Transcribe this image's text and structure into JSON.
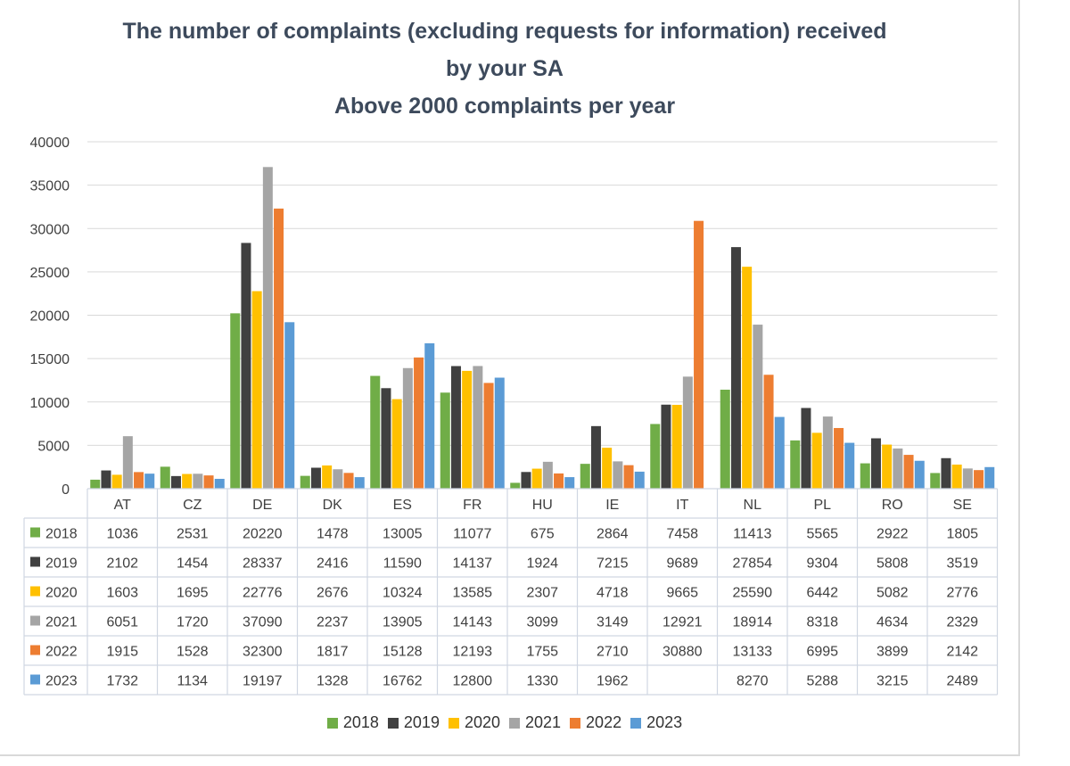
{
  "chart_data": {
    "type": "bar",
    "title": [
      "The number of complaints (excluding requests for information) received",
      "by your SA",
      "Above 2000  complaints per year"
    ],
    "categories": [
      "AT",
      "CZ",
      "DE",
      "DK",
      "ES",
      "FR",
      "HU",
      "IE",
      "IT",
      "NL",
      "PL",
      "RO",
      "SE"
    ],
    "series": [
      {
        "name": "2018",
        "color": "#70ad47",
        "values": [
          1036,
          2531,
          20220,
          1478,
          13005,
          11077,
          675,
          2864,
          7458,
          11413,
          5565,
          2922,
          1805
        ]
      },
      {
        "name": "2019",
        "color": "#404040",
        "values": [
          2102,
          1454,
          28337,
          2416,
          11590,
          14137,
          1924,
          7215,
          9689,
          27854,
          9304,
          5808,
          3519
        ]
      },
      {
        "name": "2020",
        "color": "#ffc000",
        "values": [
          1603,
          1695,
          22776,
          2676,
          10324,
          13585,
          2307,
          4718,
          9665,
          25590,
          6442,
          5082,
          2776
        ]
      },
      {
        "name": "2021",
        "color": "#a5a5a5",
        "values": [
          6051,
          1720,
          37090,
          2237,
          13905,
          14143,
          3099,
          3149,
          12921,
          18914,
          8318,
          4634,
          2329
        ]
      },
      {
        "name": "2022",
        "color": "#ed7d31",
        "values": [
          1915,
          1528,
          32300,
          1817,
          15128,
          12193,
          1755,
          2710,
          30880,
          13133,
          6995,
          3899,
          2142
        ]
      },
      {
        "name": "2023",
        "color": "#5b9bd5",
        "values": [
          1732,
          1134,
          19197,
          1328,
          16762,
          12800,
          1330,
          1962,
          null,
          8270,
          5288,
          3215,
          2489
        ]
      }
    ],
    "ylim": [
      0,
      40000
    ],
    "yticks": [
      "0",
      "5000",
      "10000",
      "15000",
      "20000",
      "25000",
      "30000",
      "35000",
      "40000"
    ],
    "grid": true,
    "legend_position": "bottom",
    "data_table": true
  }
}
